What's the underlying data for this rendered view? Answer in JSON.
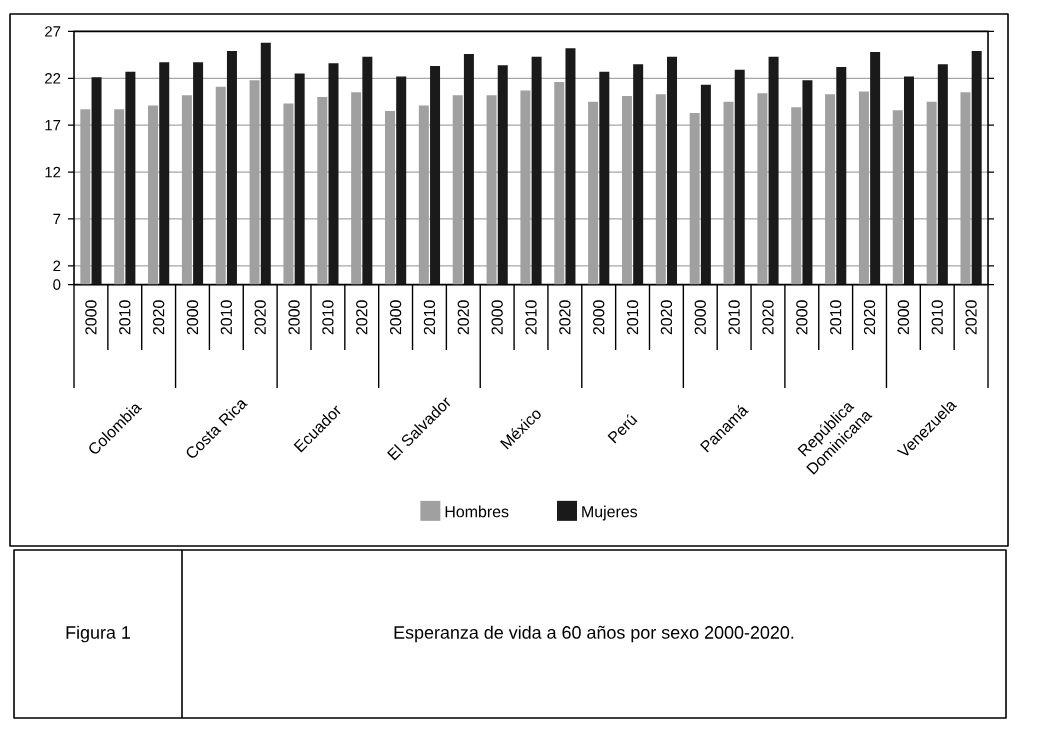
{
  "chart_data": {
    "type": "bar",
    "title": "Esperanza de vida a 60 años por sexo 2000-2020.",
    "categories": [
      "2000",
      "2010",
      "2020",
      "2000",
      "2010",
      "2020",
      "2000",
      "2010",
      "2020",
      "2000",
      "2010",
      "2020",
      "2000",
      "2010",
      "2020",
      "2000",
      "2010",
      "2020",
      "2000",
      "2010",
      "2020",
      "2000",
      "2010",
      "2020",
      "2000",
      "2010",
      "2020"
    ],
    "series": [
      {
        "name": "Hombres",
        "color": "#a0a0a0",
        "values": [
          18.7,
          18.7,
          19.1,
          20.2,
          21.1,
          21.8,
          19.3,
          20.0,
          20.5,
          18.5,
          19.1,
          20.2,
          20.2,
          20.7,
          21.6,
          19.5,
          20.1,
          20.3,
          18.3,
          19.5,
          20.4,
          18.9,
          20.3,
          20.6,
          18.6,
          19.5,
          20.5
        ]
      },
      {
        "name": "Mujeres",
        "color": "#1a1a1a",
        "values": [
          22.1,
          22.7,
          23.7,
          23.7,
          24.9,
          25.8,
          22.5,
          23.6,
          24.3,
          22.2,
          23.3,
          24.6,
          23.4,
          24.3,
          25.2,
          22.7,
          23.5,
          24.3,
          21.3,
          22.9,
          24.3,
          21.8,
          23.2,
          24.8,
          22.2,
          23.5,
          24.9
        ]
      }
    ],
    "annotations": [
      "Colombia",
      "Costa Rica",
      "Ecuador",
      "El Salvador",
      "México",
      "Perú",
      "Panamá",
      "República Dominicana",
      "Venezuela",
      "Figura 1"
    ],
    "ylim": [
      0,
      27
    ],
    "yticks": [
      0,
      2,
      7,
      12,
      17,
      22,
      27
    ],
    "grid": "y",
    "legend": "bottom"
  }
}
